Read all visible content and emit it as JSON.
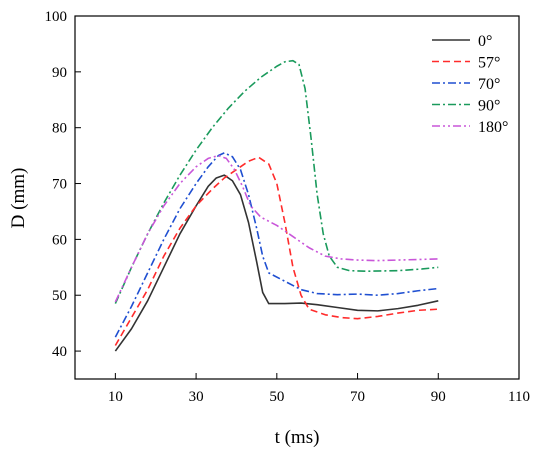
{
  "chart_data": {
    "type": "line",
    "title": "",
    "xlabel": "t (ms)",
    "ylabel": "D (mm)",
    "xlim": [
      0,
      110
    ],
    "ylim": [
      35,
      100
    ],
    "xticks": [
      10,
      30,
      50,
      70,
      90,
      110
    ],
    "yticks": [
      40,
      50,
      60,
      70,
      80,
      90,
      100
    ],
    "x_tick_labels": [
      "10",
      "30",
      "50",
      "70",
      "90",
      "110"
    ],
    "y_tick_labels": [
      "40",
      "50",
      "60",
      "70",
      "80",
      "90",
      "100"
    ],
    "grid": false,
    "legend_position": "top-right",
    "series": [
      {
        "name": "0°",
        "color": "#333333",
        "dash": "solid",
        "points": [
          [
            10,
            40
          ],
          [
            14,
            44
          ],
          [
            18,
            49
          ],
          [
            22,
            55
          ],
          [
            26,
            61
          ],
          [
            30,
            66
          ],
          [
            33,
            69.5
          ],
          [
            35,
            71
          ],
          [
            37,
            71.5
          ],
          [
            39,
            70.5
          ],
          [
            41,
            68
          ],
          [
            43,
            63
          ],
          [
            45,
            56
          ],
          [
            46.5,
            50.5
          ],
          [
            48,
            48.5
          ],
          [
            52,
            48.5
          ],
          [
            56,
            48.6
          ],
          [
            60,
            48.3
          ],
          [
            65,
            47.8
          ],
          [
            70,
            47.3
          ],
          [
            75,
            47.2
          ],
          [
            80,
            47.6
          ],
          [
            85,
            48.2
          ],
          [
            90,
            49
          ]
        ]
      },
      {
        "name": "57°",
        "color": "#ff2b2b",
        "dash": "7,4",
        "points": [
          [
            10,
            41
          ],
          [
            14,
            46
          ],
          [
            18,
            51
          ],
          [
            22,
            57
          ],
          [
            26,
            62
          ],
          [
            30,
            66
          ],
          [
            34,
            69
          ],
          [
            37,
            71
          ],
          [
            40,
            72.5
          ],
          [
            43,
            74
          ],
          [
            45.5,
            74.7
          ],
          [
            48,
            73.5
          ],
          [
            50,
            70
          ],
          [
            52,
            63
          ],
          [
            54,
            55
          ],
          [
            56,
            50
          ],
          [
            58,
            47.5
          ],
          [
            62,
            46.5
          ],
          [
            66,
            46
          ],
          [
            70,
            45.8
          ],
          [
            75,
            46.2
          ],
          [
            80,
            46.8
          ],
          [
            85,
            47.3
          ],
          [
            90,
            47.5
          ]
        ]
      },
      {
        "name": "70°",
        "color": "#1f4fd1",
        "dash": "8,3,2,3",
        "points": [
          [
            10,
            42.5
          ],
          [
            14,
            48
          ],
          [
            18,
            54
          ],
          [
            22,
            60
          ],
          [
            26,
            65.5
          ],
          [
            30,
            70
          ],
          [
            33,
            73
          ],
          [
            35.5,
            75
          ],
          [
            37,
            75.5
          ],
          [
            39,
            74.8
          ],
          [
            41,
            72.5
          ],
          [
            43,
            68
          ],
          [
            45,
            62
          ],
          [
            46.5,
            57
          ],
          [
            48,
            54
          ],
          [
            52,
            52.5
          ],
          [
            56,
            51
          ],
          [
            60,
            50.3
          ],
          [
            65,
            50.1
          ],
          [
            70,
            50.2
          ],
          [
            75,
            50
          ],
          [
            80,
            50.3
          ],
          [
            85,
            50.8
          ],
          [
            90,
            51.2
          ]
        ]
      },
      {
        "name": "90°",
        "color": "#1a9a5c",
        "dash": "8,3,2,3",
        "points": [
          [
            10,
            48.5
          ],
          [
            14,
            55
          ],
          [
            18,
            61
          ],
          [
            22,
            66.5
          ],
          [
            26,
            71.5
          ],
          [
            30,
            76
          ],
          [
            34,
            80
          ],
          [
            38,
            83.5
          ],
          [
            42,
            86.5
          ],
          [
            46,
            89
          ],
          [
            50,
            91
          ],
          [
            52,
            91.8
          ],
          [
            54,
            92
          ],
          [
            55.5,
            91.3
          ],
          [
            57,
            87
          ],
          [
            58.5,
            78
          ],
          [
            60,
            68
          ],
          [
            61.5,
            61
          ],
          [
            63,
            57
          ],
          [
            65,
            55
          ],
          [
            68,
            54.4
          ],
          [
            72,
            54.3
          ],
          [
            80,
            54.4
          ],
          [
            86,
            54.7
          ],
          [
            90,
            55
          ]
        ]
      },
      {
        "name": "180°",
        "color": "#c956d9",
        "dash": "8,3,2,3,2,3",
        "points": [
          [
            10,
            48.8
          ],
          [
            14,
            55
          ],
          [
            18,
            61
          ],
          [
            22,
            66
          ],
          [
            26,
            70
          ],
          [
            30,
            73
          ],
          [
            33,
            74.5
          ],
          [
            35.5,
            75
          ],
          [
            37.5,
            74.5
          ],
          [
            39.5,
            72.5
          ],
          [
            41.5,
            69.5
          ],
          [
            43.5,
            66
          ],
          [
            46,
            64
          ],
          [
            50,
            62.5
          ],
          [
            54,
            60.5
          ],
          [
            58,
            58.5
          ],
          [
            62,
            57
          ],
          [
            66,
            56.5
          ],
          [
            70,
            56.3
          ],
          [
            75,
            56.2
          ],
          [
            80,
            56.3
          ],
          [
            85,
            56.4
          ],
          [
            90,
            56.5
          ]
        ]
      }
    ]
  }
}
